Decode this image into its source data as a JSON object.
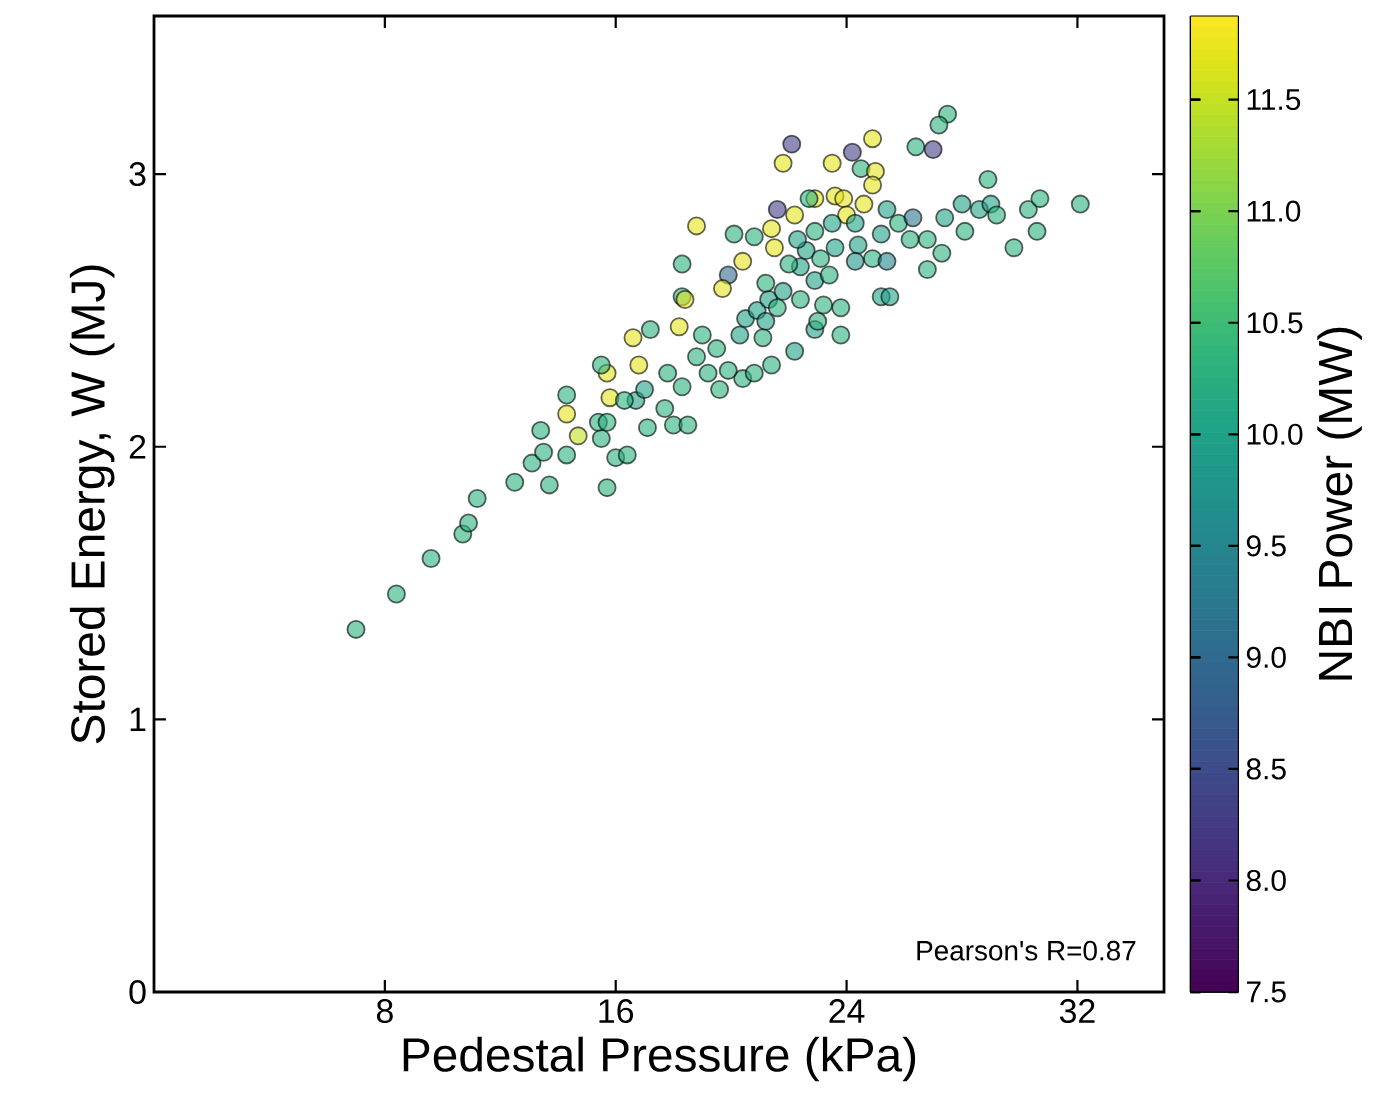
{
  "chart_data": {
    "type": "scatter",
    "xlabel": "Pedestal Pressure (kPa)",
    "ylabel": "Stored Energy, W (MJ)",
    "clabel": "NBI Power (MW)",
    "annotations": [
      "Pearson's R=0.87"
    ],
    "marker": "circle",
    "xlim": [
      0,
      35
    ],
    "ylim": [
      0,
      3.58
    ],
    "xticks": [
      8,
      16,
      24,
      32
    ],
    "yticks": [
      0,
      1,
      2,
      3
    ],
    "clim": [
      7.5,
      11.875
    ],
    "cticks": [
      7.5,
      {
        "value": 8,
        "label": "8.0"
      },
      8.5,
      {
        "value": 9,
        "label": "9.0"
      },
      9.5,
      {
        "value": 10,
        "label": "10.0"
      },
      10.5,
      {
        "value": 11,
        "label": "11.0"
      },
      11.5
    ],
    "x": [
      7.0,
      8.4,
      9.6,
      10.7,
      10.9,
      11.2,
      12.5,
      13.7,
      13.1,
      13.5,
      13.4,
      14.3,
      14.7,
      14.3,
      14.3,
      15.7,
      16.0,
      16.4,
      15.5,
      15.4,
      15.7,
      15.8,
      15.7,
      15.5,
      16.8,
      16.6,
      17.2,
      17.1,
      16.7,
      17.0,
      16.3,
      27.5,
      27.2,
      27.0,
      26.4,
      24.9,
      24.2,
      23.5,
      22.1,
      21.8,
      24.5,
      25.0,
      24.9,
      22.9,
      23.6,
      23.9,
      24.6,
      24.0,
      22.7,
      21.6,
      22.2,
      21.4,
      21.5,
      18.8,
      20.1,
      20.8,
      20.4,
      19.9,
      19.7,
      18.3,
      18.3,
      18.4,
      18.2,
      18.0,
      18.5,
      17.8,
      18.3,
      17.7,
      19.6,
      20.4,
      20.8,
      21.4,
      19.9,
      19.0,
      19.5,
      20.3,
      20.5,
      20.9,
      21.2,
      21.3,
      21.8,
      21.6,
      21.2,
      21.1,
      22.2,
      22.9,
      23.0,
      22.4,
      22.9,
      23.4,
      22.4,
      22.0,
      22.6,
      23.1,
      23.6,
      23.8,
      23.2,
      22.3,
      22.9,
      23.5,
      24.3,
      24.4,
      24.9,
      24.3,
      25.2,
      25.5,
      25.4,
      25.2,
      25.4,
      25.8,
      26.3,
      26.2,
      26.8,
      27.3,
      26.8,
      27.4,
      28.0,
      28.1,
      28.6,
      28.9,
      29.0,
      29.2,
      29.8,
      30.3,
      30.7,
      30.6,
      32.1,
      18.8,
      19.2,
      23.8
    ],
    "values": [
      1.33,
      1.46,
      1.59,
      1.68,
      1.72,
      1.81,
      1.87,
      1.86,
      1.94,
      1.98,
      2.06,
      1.97,
      2.04,
      2.12,
      2.19,
      1.85,
      1.96,
      1.97,
      2.03,
      2.09,
      2.09,
      2.18,
      2.27,
      2.3,
      2.3,
      2.4,
      2.43,
      2.07,
      2.17,
      2.21,
      2.17,
      3.22,
      3.18,
      3.09,
      3.1,
      3.13,
      3.08,
      3.04,
      3.11,
      3.04,
      3.02,
      3.01,
      2.96,
      2.91,
      2.92,
      2.91,
      2.89,
      2.85,
      2.91,
      2.87,
      2.85,
      2.8,
      2.73,
      2.81,
      2.78,
      2.77,
      2.68,
      2.63,
      2.58,
      2.67,
      2.55,
      2.54,
      2.44,
      2.08,
      2.08,
      2.27,
      2.22,
      2.14,
      2.21,
      2.25,
      2.27,
      2.3,
      2.28,
      2.41,
      2.36,
      2.41,
      2.47,
      2.5,
      2.46,
      2.54,
      2.57,
      2.51,
      2.6,
      2.4,
      2.35,
      2.43,
      2.46,
      2.54,
      2.61,
      2.63,
      2.66,
      2.67,
      2.72,
      2.69,
      2.73,
      2.51,
      2.52,
      2.76,
      2.79,
      2.82,
      2.82,
      2.74,
      2.69,
      2.68,
      2.55,
      2.55,
      2.68,
      2.78,
      2.87,
      2.82,
      2.84,
      2.76,
      2.65,
      2.71,
      2.76,
      2.84,
      2.89,
      2.79,
      2.87,
      2.98,
      2.89,
      2.85,
      2.73,
      2.87,
      2.91,
      2.79,
      2.89,
      2.33,
      2.27,
      2.41
    ],
    "cvalues": [
      10.3,
      10.3,
      10.3,
      10.3,
      10.3,
      10.3,
      10.3,
      10.3,
      10.3,
      10.3,
      10.3,
      10.3,
      11.5,
      11.7,
      10.3,
      10.3,
      10.3,
      10.3,
      10.3,
      10.3,
      10.3,
      11.7,
      11.7,
      10.3,
      11.7,
      11.7,
      10.3,
      10.3,
      10.0,
      10.0,
      10.3,
      10.3,
      10.3,
      8.3,
      10.3,
      11.7,
      8.3,
      11.7,
      8.3,
      11.7,
      10.3,
      11.7,
      11.7,
      11.7,
      11.7,
      11.7,
      11.7,
      11.7,
      10.3,
      8.3,
      11.7,
      11.7,
      11.7,
      11.7,
      10.3,
      10.3,
      11.7,
      9.0,
      11.7,
      10.3,
      10.3,
      11.7,
      11.7,
      10.3,
      10.3,
      10.3,
      10.3,
      10.3,
      10.3,
      10.3,
      10.3,
      10.3,
      10.3,
      10.3,
      10.3,
      10.0,
      10.0,
      10.0,
      10.0,
      10.0,
      10.0,
      10.3,
      10.3,
      10.3,
      10.0,
      10.0,
      10.3,
      10.3,
      10.0,
      10.3,
      10.0,
      10.3,
      10.0,
      10.3,
      10.0,
      10.3,
      10.3,
      10.0,
      10.3,
      10.0,
      10.0,
      10.0,
      10.3,
      9.8,
      10.0,
      10.0,
      9.5,
      10.0,
      10.0,
      10.3,
      9.2,
      10.3,
      10.3,
      10.3,
      10.3,
      10.0,
      10.0,
      10.3,
      10.0,
      10.3,
      10.0,
      10.3,
      10.3,
      10.3,
      10.3,
      10.3,
      10.3,
      10.3,
      10.3,
      10.3
    ]
  }
}
